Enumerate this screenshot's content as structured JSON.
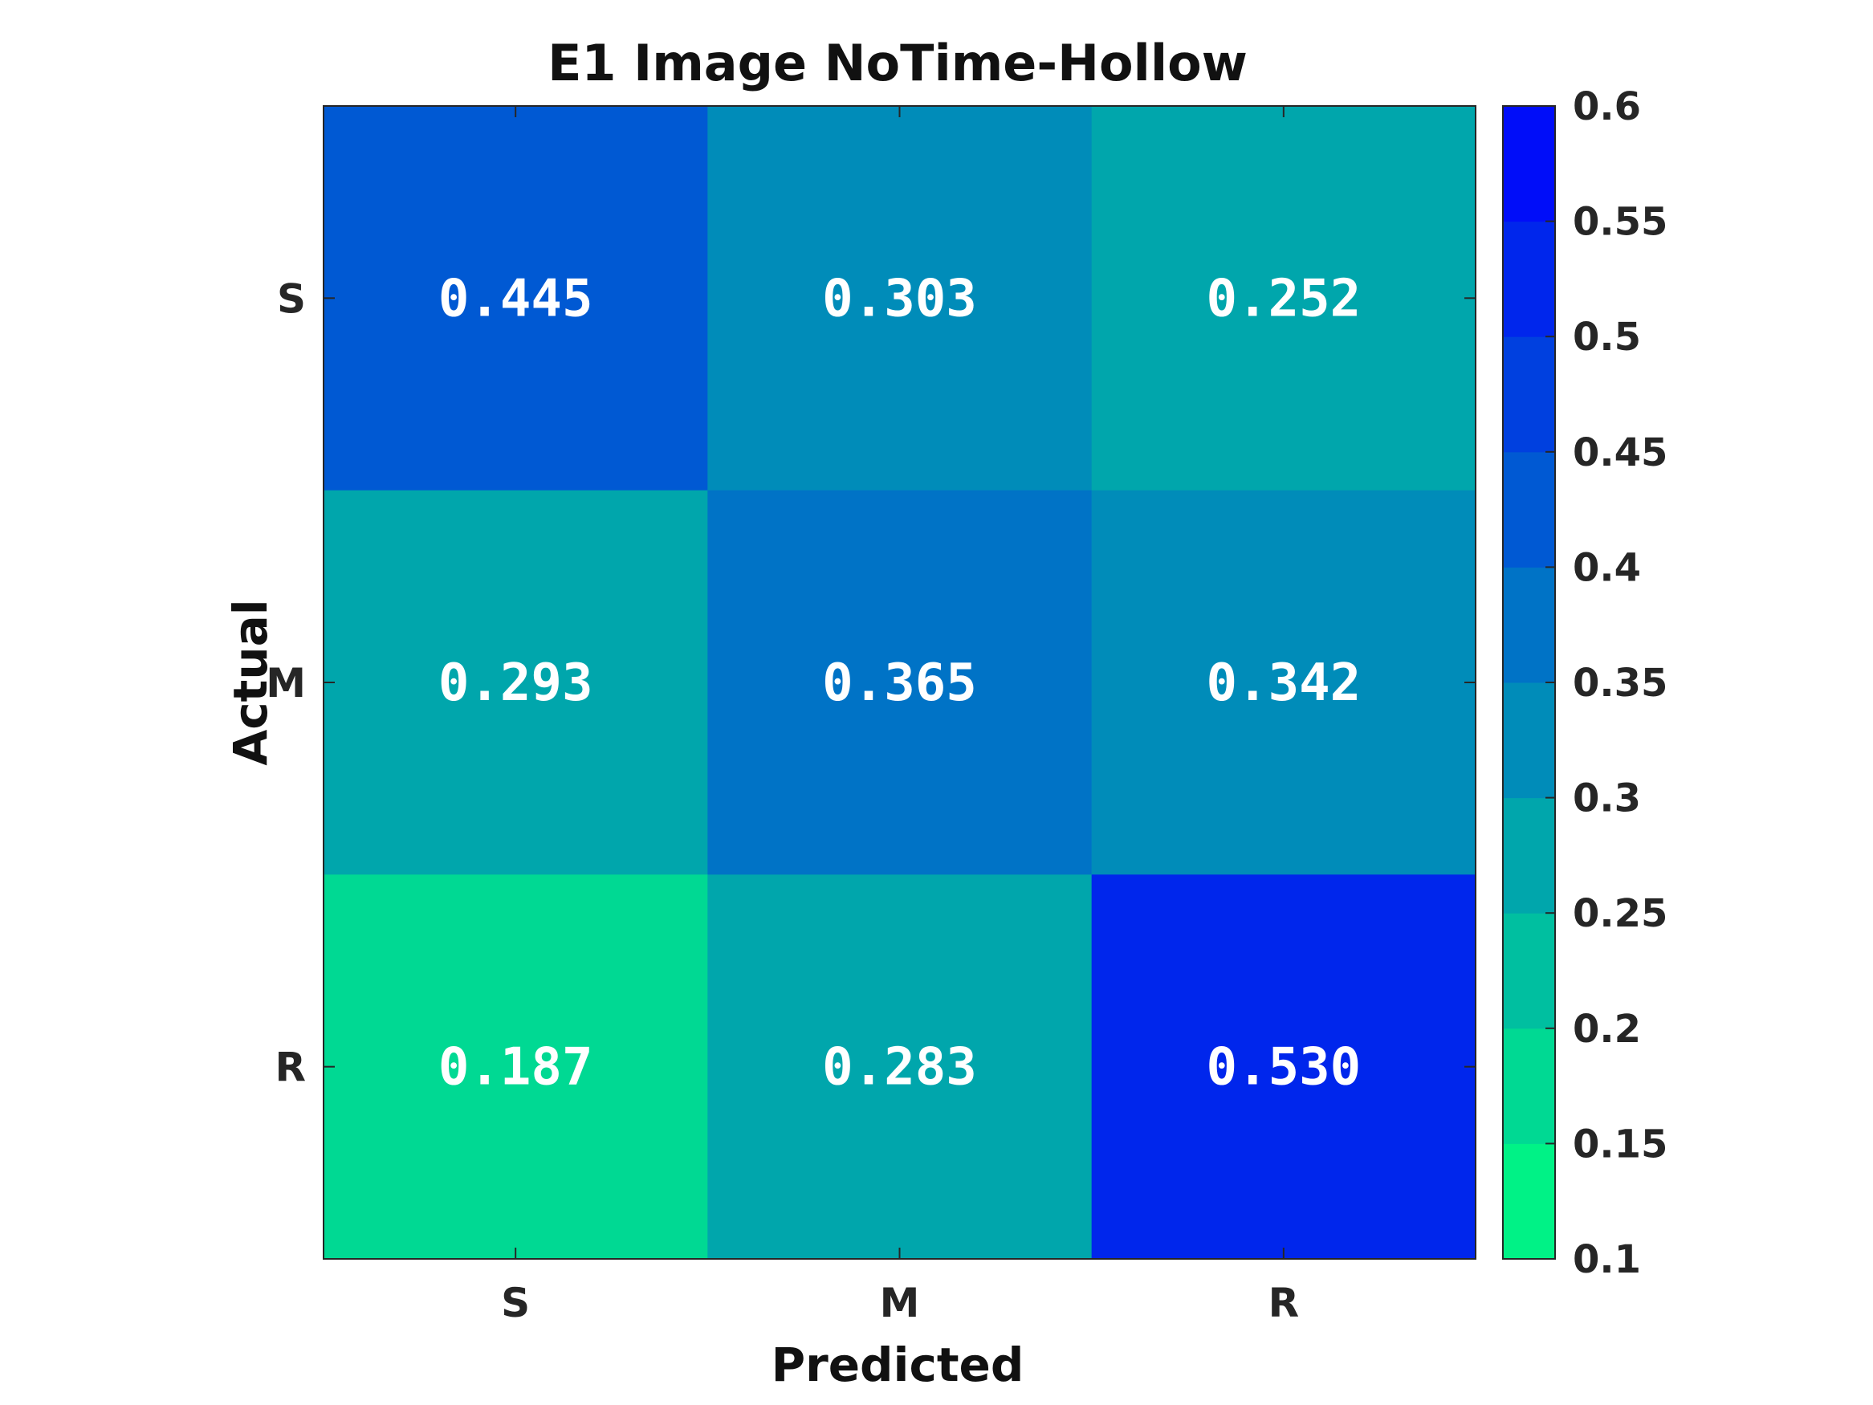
{
  "chart_data": {
    "type": "heatmap",
    "title": "E1 Image NoTime-Hollow",
    "xlabel": "Predicted",
    "ylabel": "Actual",
    "x_categories": [
      "S",
      "M",
      "R"
    ],
    "y_categories": [
      "S",
      "M",
      "R"
    ],
    "values": [
      [
        0.445,
        0.303,
        0.252
      ],
      [
        0.293,
        0.365,
        0.342
      ],
      [
        0.187,
        0.283,
        0.53
      ]
    ],
    "value_labels": [
      [
        "0.445",
        "0.303",
        "0.252"
      ],
      [
        "0.293",
        "0.365",
        "0.342"
      ],
      [
        "0.187",
        "0.283",
        "0.530"
      ]
    ],
    "colorbar": {
      "min": 0.1,
      "max": 0.6,
      "ticks": [
        "0.1",
        "0.15",
        "0.2",
        "0.25",
        "0.3",
        "0.35",
        "0.4",
        "0.45",
        "0.5",
        "0.55",
        "0.6"
      ],
      "color_low": "#00ff80",
      "color_high": "#0000ff",
      "levels": 10
    },
    "grid": false,
    "legend": "colorbar-right"
  }
}
